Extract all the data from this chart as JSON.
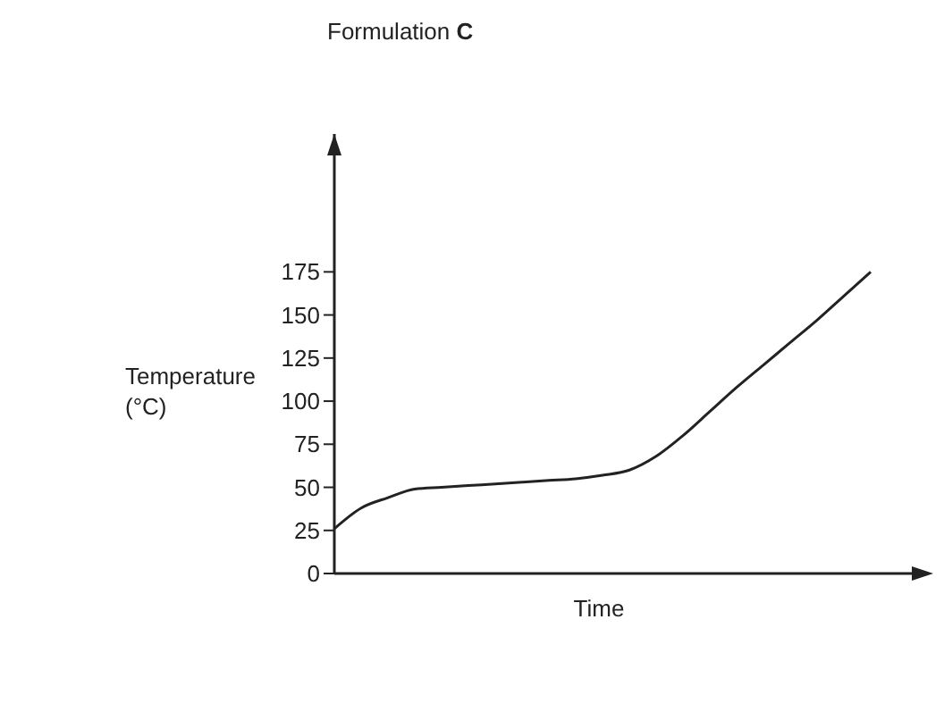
{
  "chart_data": {
    "type": "line",
    "title": "Formulation C",
    "xlabel": "Time",
    "ylabel": "Temperature (°C)",
    "categories": [
      null,
      null,
      null,
      null,
      null,
      null,
      null,
      null,
      null,
      null,
      null,
      null,
      null,
      null,
      null,
      null,
      null,
      null,
      null,
      null,
      null
    ],
    "series": [
      {
        "color": "#222222",
        "values": [
          26,
          38,
          44,
          49,
          50,
          51,
          52,
          53,
          54,
          55,
          57,
          60,
          68,
          80,
          94,
          108,
          121,
          134,
          147,
          161,
          175
        ]
      }
    ],
    "ylim": [
      0,
      255
    ],
    "yticks": [
      0,
      25,
      50,
      75,
      100,
      125,
      150,
      175
    ],
    "grid": false
  }
}
